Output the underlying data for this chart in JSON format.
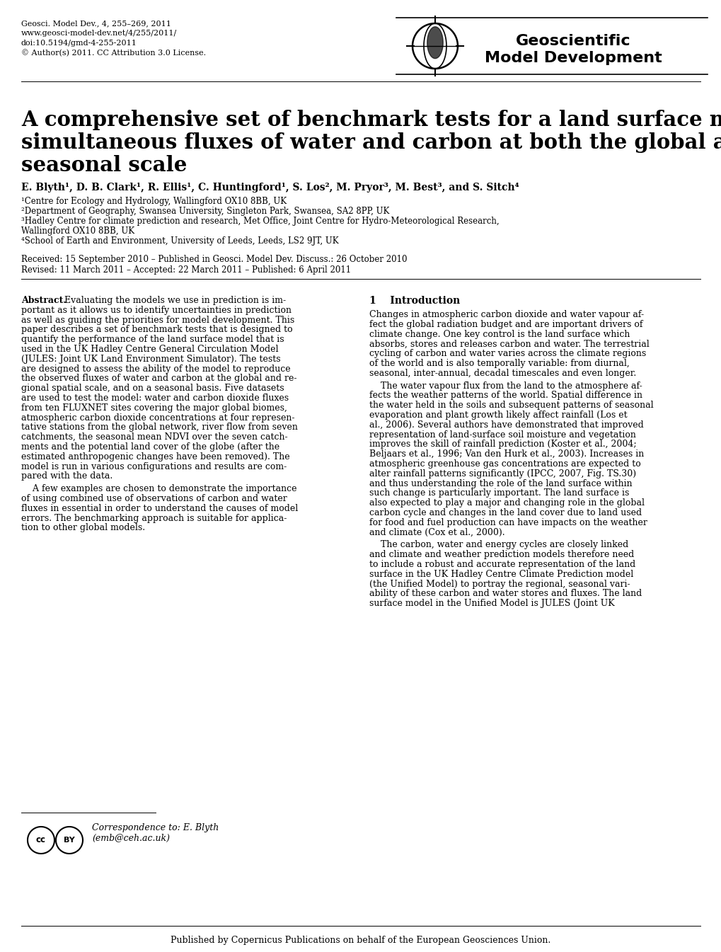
{
  "bg_color": "#ffffff",
  "header_journal": "Geosci. Model Dev., 4, 255–269, 2011",
  "header_url": "www.geosci-model-dev.net/4/255/2011/",
  "header_doi": "doi:10.5194/gmd-4-255-2011",
  "header_license": "© Author(s) 2011. CC Attribution 3.0 License.",
  "journal_name_line1": "Geoscientific",
  "journal_name_line2": "Model Development",
  "title_line1": "A comprehensive set of benchmark tests for a land surface model of",
  "title_line2": "simultaneous fluxes of water and carbon at both the global and",
  "title_line3": "seasonal scale",
  "authors": "E. Blyth¹, D. B. Clark¹, R. Ellis¹, C. Huntingford¹, S. Los², M. Pryor³, M. Best³, and S. Sitch⁴",
  "affil1": "¹Centre for Ecology and Hydrology, Wallingford OX10 8BB, UK",
  "affil2": "²Department of Geography, Swansea University, Singleton Park, Swansea, SA2 8PP, UK",
  "affil3": "³Hadley Centre for climate prediction and research, Met Office, Joint Centre for Hydro-Meteorological Research,",
  "affil3b": "Wallingford OX10 8BB, UK",
  "affil4": "⁴School of Earth and Environment, University of Leeds, Leeds, LS2 9JT, UK",
  "received": "Received: 15 September 2010 – Published in Geosci. Model Dev. Discuss.: 26 October 2010",
  "revised": "Revised: 11 March 2011 – Accepted: 22 March 2011 – Published: 6 April 2011",
  "abstract_lines": [
    "Abstract. Evaluating the models we use in prediction is im-",
    "portant as it allows us to identify uncertainties in prediction",
    "as well as guiding the priorities for model development. This",
    "paper describes a set of benchmark tests that is designed to",
    "quantify the performance of the land surface model that is",
    "used in the UK Hadley Centre General Circulation Model",
    "(JULES: Joint UK Land Environment Simulator). The tests",
    "are designed to assess the ability of the model to reproduce",
    "the observed fluxes of water and carbon at the global and re-",
    "gional spatial scale, and on a seasonal basis. Five datasets",
    "are used to test the model: water and carbon dioxide fluxes",
    "from ten FLUXNET sites covering the major global biomes,",
    "atmospheric carbon dioxide concentrations at four represen-",
    "tative stations from the global network, river flow from seven",
    "catchments, the seasonal mean NDVI over the seven catch-",
    "ments and the potential land cover of the globe (after the",
    "estimated anthropogenic changes have been removed). The",
    "model is run in various configurations and results are com-",
    "pared with the data."
  ],
  "abstract_lines2": [
    "    A few examples are chosen to demonstrate the importance",
    "of using combined use of observations of carbon and water",
    "fluxes in essential in order to understand the causes of model",
    "errors. The benchmarking approach is suitable for applica-",
    "tion to other global models."
  ],
  "intro_title": "1    Introduction",
  "intro_lines1": [
    "Changes in atmospheric carbon dioxide and water vapour af-",
    "fect the global radiation budget and are important drivers of",
    "climate change. One key control is the land surface which",
    "absorbs, stores and releases carbon and water. The terrestrial",
    "cycling of carbon and water varies across the climate regions",
    "of the world and is also temporally variable: from diurnal,",
    "seasonal, inter-annual, decadal timescales and even longer."
  ],
  "intro_lines2": [
    "    The water vapour flux from the land to the atmosphere af-",
    "fects the weather patterns of the world. Spatial difference in",
    "the water held in the soils and subsequent patterns of seasonal",
    "evaporation and plant growth likely affect rainfall (Los et",
    "al., 2006). Several authors have demonstrated that improved",
    "representation of land-surface soil moisture and vegetation",
    "improves the skill of rainfall prediction (Koster et al., 2004;",
    "Beljaars et al., 1996; Van den Hurk et al., 2003). Increases in",
    "atmospheric greenhouse gas concentrations are expected to",
    "alter rainfall patterns significantly (IPCC, 2007, Fig. TS.30)",
    "and thus understanding the role of the land surface within",
    "such change is particularly important. The land surface is",
    "also expected to play a major and changing role in the global",
    "carbon cycle and changes in the land cover due to land used",
    "for food and fuel production can have impacts on the weather",
    "and climate (Cox et al., 2000)."
  ],
  "intro_lines3": [
    "    The carbon, water and energy cycles are closely linked",
    "and climate and weather prediction models therefore need",
    "to include a robust and accurate representation of the land",
    "surface in the UK Hadley Centre Climate Prediction model",
    "(the Unified Model) to portray the regional, seasonal vari-",
    "ability of these carbon and water stores and fluxes. The land",
    "surface model in the Unified Model is JULES (Joint UK"
  ],
  "correspondence": "Correspondence to: E. Blyth",
  "correspondence_email": "(emb@ceh.ac.uk)",
  "footer": "Published by Copernicus Publications on behalf of the European Geosciences Union."
}
